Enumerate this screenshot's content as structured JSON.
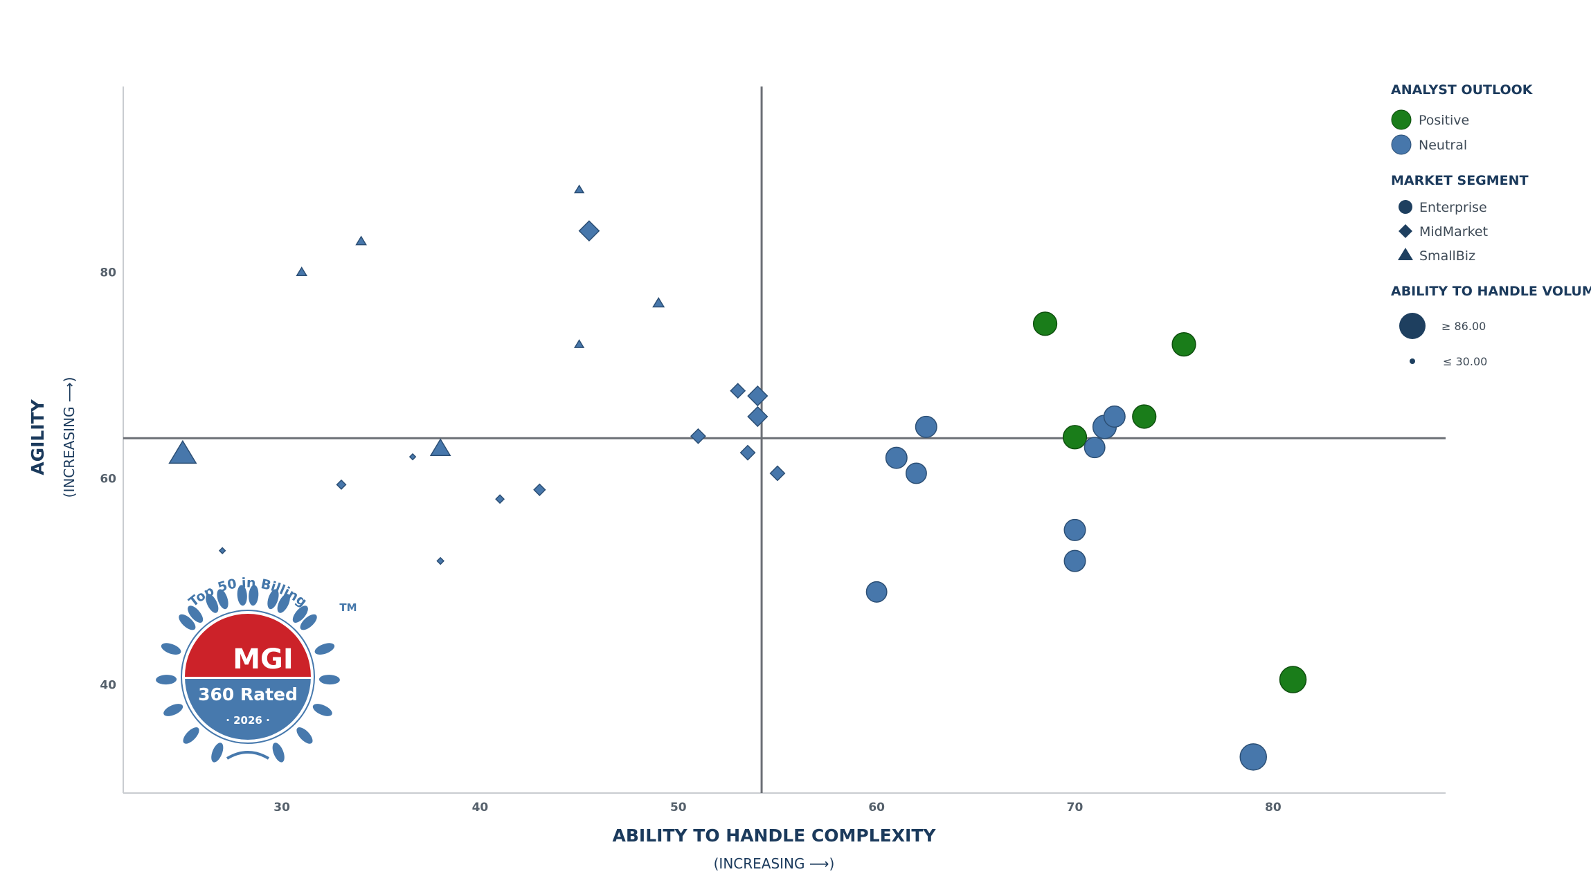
{
  "chart_data": {
    "type": "scatter",
    "xlabel": "ABILITY TO HANDLE COMPLEXITY",
    "xlabel_sub": "(INCREASING ⟶)",
    "ylabel": "AGILITY",
    "ylabel_sub": "(INCREASING ⟶)",
    "xlim": [
      22,
      88.7
    ],
    "ylim": [
      29.5,
      98
    ],
    "xticks": [
      30,
      40,
      50,
      60,
      70,
      80
    ],
    "yticks": [
      40,
      60,
      80
    ],
    "quadrant_lines": {
      "x": 54.2,
      "y": 63.9
    },
    "grid": false,
    "colors": {
      "Positive": "#1a7d1a",
      "Neutral": "#4777ab",
      "legend_dark": "#1e3f5f",
      "axis_line": "#6b6f75"
    },
    "points": [
      {
        "x": 25.0,
        "y": 62.4,
        "outlook": "Neutral",
        "segment": "SmallBiz",
        "volume": 70
      },
      {
        "x": 27.0,
        "y": 53.0,
        "outlook": "Neutral",
        "segment": "MidMarket",
        "volume": 30
      },
      {
        "x": 31.0,
        "y": 80.0,
        "outlook": "Neutral",
        "segment": "SmallBiz",
        "volume": 35
      },
      {
        "x": 33.0,
        "y": 59.4,
        "outlook": "Neutral",
        "segment": "MidMarket",
        "volume": 38
      },
      {
        "x": 34.0,
        "y": 83.0,
        "outlook": "Neutral",
        "segment": "SmallBiz",
        "volume": 35
      },
      {
        "x": 36.6,
        "y": 62.1,
        "outlook": "Neutral",
        "segment": "MidMarket",
        "volume": 30
      },
      {
        "x": 38.0,
        "y": 62.9,
        "outlook": "Neutral",
        "segment": "SmallBiz",
        "volume": 55
      },
      {
        "x": 38.0,
        "y": 52.0,
        "outlook": "Neutral",
        "segment": "MidMarket",
        "volume": 32
      },
      {
        "x": 41.0,
        "y": 58.0,
        "outlook": "Neutral",
        "segment": "MidMarket",
        "volume": 36
      },
      {
        "x": 43.0,
        "y": 58.9,
        "outlook": "Neutral",
        "segment": "MidMarket",
        "volume": 44
      },
      {
        "x": 45.0,
        "y": 88.0,
        "outlook": "Neutral",
        "segment": "SmallBiz",
        "volume": 33
      },
      {
        "x": 45.0,
        "y": 73.0,
        "outlook": "Neutral",
        "segment": "SmallBiz",
        "volume": 33
      },
      {
        "x": 45.5,
        "y": 84.0,
        "outlook": "Neutral",
        "segment": "MidMarket",
        "volume": 66
      },
      {
        "x": 49.0,
        "y": 77.0,
        "outlook": "Neutral",
        "segment": "SmallBiz",
        "volume": 37
      },
      {
        "x": 51.0,
        "y": 64.1,
        "outlook": "Neutral",
        "segment": "MidMarket",
        "volume": 52
      },
      {
        "x": 53.0,
        "y": 68.5,
        "outlook": "Neutral",
        "segment": "MidMarket",
        "volume": 52
      },
      {
        "x": 53.5,
        "y": 62.5,
        "outlook": "Neutral",
        "segment": "MidMarket",
        "volume": 52
      },
      {
        "x": 54.0,
        "y": 68.0,
        "outlook": "Neutral",
        "segment": "MidMarket",
        "volume": 65
      },
      {
        "x": 54.0,
        "y": 66.0,
        "outlook": "Neutral",
        "segment": "MidMarket",
        "volume": 65
      },
      {
        "x": 55.0,
        "y": 60.5,
        "outlook": "Neutral",
        "segment": "MidMarket",
        "volume": 52
      },
      {
        "x": 60.0,
        "y": 49.0,
        "outlook": "Neutral",
        "segment": "Enterprise",
        "volume": 70
      },
      {
        "x": 61.0,
        "y": 62.0,
        "outlook": "Neutral",
        "segment": "Enterprise",
        "volume": 72
      },
      {
        "x": 62.0,
        "y": 60.5,
        "outlook": "Neutral",
        "segment": "Enterprise",
        "volume": 70
      },
      {
        "x": 62.5,
        "y": 65.0,
        "outlook": "Neutral",
        "segment": "Enterprise",
        "volume": 72
      },
      {
        "x": 68.5,
        "y": 75.0,
        "outlook": "Positive",
        "segment": "Enterprise",
        "volume": 78
      },
      {
        "x": 70.0,
        "y": 64.0,
        "outlook": "Positive",
        "segment": "Enterprise",
        "volume": 78
      },
      {
        "x": 70.0,
        "y": 55.0,
        "outlook": "Neutral",
        "segment": "Enterprise",
        "volume": 72
      },
      {
        "x": 70.0,
        "y": 52.0,
        "outlook": "Neutral",
        "segment": "Enterprise",
        "volume": 72
      },
      {
        "x": 71.0,
        "y": 63.0,
        "outlook": "Neutral",
        "segment": "Enterprise",
        "volume": 70
      },
      {
        "x": 71.5,
        "y": 65.0,
        "outlook": "Neutral",
        "segment": "Enterprise",
        "volume": 78
      },
      {
        "x": 72.0,
        "y": 66.0,
        "outlook": "Neutral",
        "segment": "Enterprise",
        "volume": 72
      },
      {
        "x": 73.5,
        "y": 66.0,
        "outlook": "Positive",
        "segment": "Enterprise",
        "volume": 78
      },
      {
        "x": 75.5,
        "y": 73.0,
        "outlook": "Positive",
        "segment": "Enterprise",
        "volume": 78
      },
      {
        "x": 79.0,
        "y": 33.0,
        "outlook": "Neutral",
        "segment": "Enterprise",
        "volume": 86
      },
      {
        "x": 81.0,
        "y": 40.5,
        "outlook": "Positive",
        "segment": "Enterprise",
        "volume": 86
      }
    ],
    "legend": {
      "placement": "top-right",
      "outlook_title": "ANALYST OUTLOOK",
      "outlook_items": [
        "Positive",
        "Neutral"
      ],
      "segment_title": "MARKET SEGMENT",
      "segment_items": [
        "Enterprise",
        "MidMarket",
        "SmallBiz"
      ],
      "volume_title": "ABILITY TO HANDLE VOLUME",
      "volume_max_label": "≥ 86.00",
      "volume_min_label": "≤ 30.00",
      "volume_range": [
        30,
        86
      ]
    }
  },
  "badge": {
    "top_text": "Top 50 in Billing",
    "trademark": "TM",
    "brand": "MGI",
    "rated": "360 Rated",
    "year": "· 2026 ·",
    "colors": {
      "red": "#cc2229",
      "blue": "#4779ad"
    }
  }
}
